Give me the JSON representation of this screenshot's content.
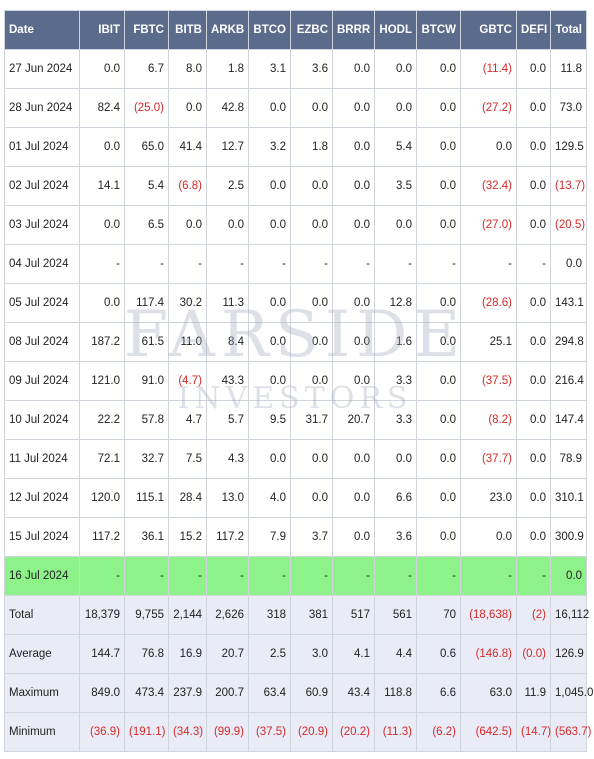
{
  "columns": [
    "Date",
    "IBIT",
    "FBTC",
    "BITB",
    "ARKB",
    "BTCO",
    "EZBC",
    "BRRR",
    "HODL",
    "BTCW",
    "GBTC",
    "DEFI",
    "Total"
  ],
  "rows": [
    {
      "date": "27 Jun 2024",
      "values": [
        "0.0",
        "6.7",
        "8.0",
        "1.8",
        "3.1",
        "3.6",
        "0.0",
        "0.0",
        "0.0",
        "(11.4)",
        "0.0",
        "11.8"
      ]
    },
    {
      "date": "28 Jun 2024",
      "values": [
        "82.4",
        "(25.0)",
        "0.0",
        "42.8",
        "0.0",
        "0.0",
        "0.0",
        "0.0",
        "0.0",
        "(27.2)",
        "0.0",
        "73.0"
      ]
    },
    {
      "date": "01 Jul 2024",
      "values": [
        "0.0",
        "65.0",
        "41.4",
        "12.7",
        "3.2",
        "1.8",
        "0.0",
        "5.4",
        "0.0",
        "0.0",
        "0.0",
        "129.5"
      ]
    },
    {
      "date": "02 Jul 2024",
      "values": [
        "14.1",
        "5.4",
        "(6.8)",
        "2.5",
        "0.0",
        "0.0",
        "0.0",
        "3.5",
        "0.0",
        "(32.4)",
        "0.0",
        "(13.7)"
      ]
    },
    {
      "date": "03 Jul 2024",
      "values": [
        "0.0",
        "6.5",
        "0.0",
        "0.0",
        "0.0",
        "0.0",
        "0.0",
        "0.0",
        "0.0",
        "(27.0)",
        "0.0",
        "(20.5)"
      ]
    },
    {
      "date": "04 Jul 2024",
      "values": [
        "-",
        "-",
        "-",
        "-",
        "-",
        "-",
        "-",
        "-",
        "-",
        "-",
        "-",
        "0.0"
      ]
    },
    {
      "date": "05 Jul 2024",
      "values": [
        "0.0",
        "117.4",
        "30.2",
        "11.3",
        "0.0",
        "0.0",
        "0.0",
        "12.8",
        "0.0",
        "(28.6)",
        "0.0",
        "143.1"
      ]
    },
    {
      "date": "08 Jul 2024",
      "values": [
        "187.2",
        "61.5",
        "11.0",
        "8.4",
        "0.0",
        "0.0",
        "0.0",
        "1.6",
        "0.0",
        "25.1",
        "0.0",
        "294.8"
      ]
    },
    {
      "date": "09 Jul 2024",
      "values": [
        "121.0",
        "91.0",
        "(4.7)",
        "43.3",
        "0.0",
        "0.0",
        "0.0",
        "3.3",
        "0.0",
        "(37.5)",
        "0.0",
        "216.4"
      ]
    },
    {
      "date": "10 Jul 2024",
      "values": [
        "22.2",
        "57.8",
        "4.7",
        "5.7",
        "9.5",
        "31.7",
        "20.7",
        "3.3",
        "0.0",
        "(8.2)",
        "0.0",
        "147.4"
      ]
    },
    {
      "date": "11 Jul 2024",
      "values": [
        "72.1",
        "32.7",
        "7.5",
        "4.3",
        "0.0",
        "0.0",
        "0.0",
        "0.0",
        "0.0",
        "(37.7)",
        "0.0",
        "78.9"
      ]
    },
    {
      "date": "12 Jul 2024",
      "values": [
        "120.0",
        "115.1",
        "28.4",
        "13.0",
        "4.0",
        "0.0",
        "0.0",
        "6.6",
        "0.0",
        "23.0",
        "0.0",
        "310.1"
      ]
    },
    {
      "date": "15 Jul 2024",
      "values": [
        "117.2",
        "36.1",
        "15.2",
        "117.2",
        "7.9",
        "3.7",
        "0.0",
        "3.6",
        "0.0",
        "0.0",
        "0.0",
        "300.9"
      ]
    },
    {
      "date": "16 Jul 2024",
      "values": [
        "-",
        "-",
        "-",
        "-",
        "-",
        "-",
        "-",
        "-",
        "-",
        "-",
        "-",
        "0.0"
      ],
      "highlight": true
    }
  ],
  "summary": [
    {
      "label": "Total",
      "values": [
        "18,379",
        "9,755",
        "2,144",
        "2,626",
        "318",
        "381",
        "517",
        "561",
        "70",
        "(18,638)",
        "(2)",
        "16,112"
      ]
    },
    {
      "label": "Average",
      "values": [
        "144.7",
        "76.8",
        "16.9",
        "20.7",
        "2.5",
        "3.0",
        "4.1",
        "4.4",
        "0.6",
        "(146.8)",
        "(0.0)",
        "126.9"
      ]
    },
    {
      "label": "Maximum",
      "values": [
        "849.0",
        "473.4",
        "237.9",
        "200.7",
        "63.4",
        "60.9",
        "43.4",
        "118.8",
        "6.6",
        "63.0",
        "11.9",
        "1,045.0"
      ]
    },
    {
      "label": "Minimum",
      "values": [
        "(36.9)",
        "(191.1)",
        "(34.3)",
        "(99.9)",
        "(37.5)",
        "(20.9)",
        "(20.2)",
        "(11.3)",
        "(6.2)",
        "(642.5)",
        "(14.7)",
        "(563.7)"
      ]
    }
  ],
  "watermark": {
    "top": "FARSIDE",
    "bottom": "INVESTORS"
  },
  "colors": {
    "header_bg": "#5b6b8c",
    "negative": "#d42a2a",
    "highlight_row": "#8ef28a",
    "summary_bg": "#e9ecf7"
  }
}
